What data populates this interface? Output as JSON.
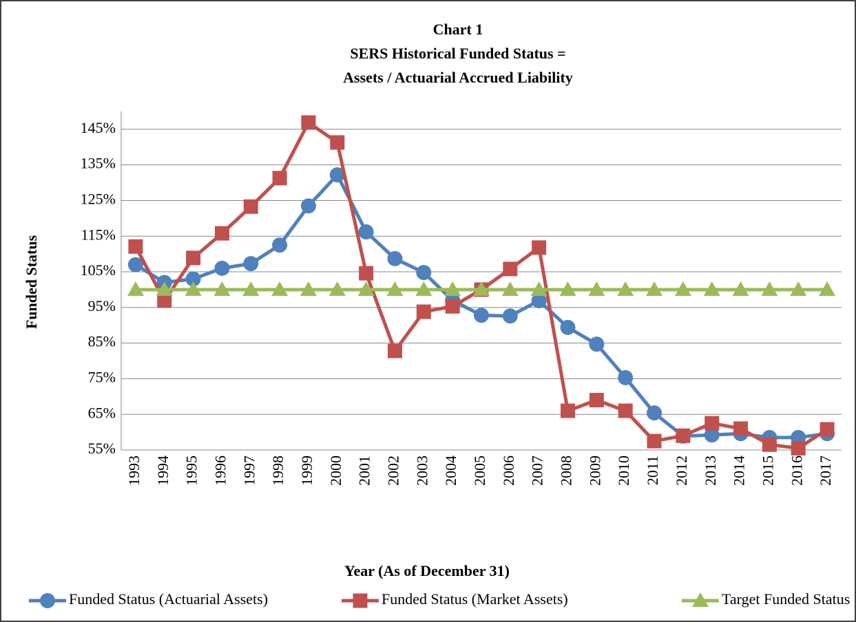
{
  "chart_data": {
    "type": "line",
    "title": "Chart 1",
    "subtitle": [
      "SERS Historical Funded Status =",
      "Assets / Actuarial Accrued Liability"
    ],
    "x_label": "Year (As of December 31)",
    "y_label": "Funded Status",
    "categories": [
      "1993",
      "1994",
      "1995",
      "1996",
      "1997",
      "1998",
      "1999",
      "2000",
      "2001",
      "2002",
      "2003",
      "2004",
      "2005",
      "2006",
      "2007",
      "2008",
      "2009",
      "2010",
      "2011",
      "2012",
      "2013",
      "2014",
      "2015",
      "2016",
      "2017"
    ],
    "series": [
      {
        "name": "Funded Status (Actuarial Assets)",
        "color": "#4f81bd",
        "marker": "circle",
        "values": [
          107,
          102,
          103,
          106,
          107.3,
          112.5,
          123.5,
          132.2,
          116.2,
          108.7,
          104.8,
          97,
          92.8,
          92.6,
          96.9,
          89.4,
          84.7,
          75.3,
          65.4,
          58.9,
          59.2,
          59.6,
          58.5,
          58.5,
          59.6
        ]
      },
      {
        "name": "Funded Status (Market Assets)",
        "color": "#c0504d",
        "marker": "square",
        "values": [
          112.1,
          96.9,
          108.9,
          115.8,
          123.3,
          131.3,
          146.9,
          141.3,
          104.6,
          82.8,
          93.8,
          95.3,
          100,
          105.8,
          111.8,
          66,
          69,
          66,
          57.5,
          59,
          62.5,
          61,
          56.5,
          55.5,
          60.8
        ]
      },
      {
        "name": "Target Funded Status",
        "color": "#9bbb59",
        "marker": "triangle",
        "values": [
          100,
          100,
          100,
          100,
          100,
          100,
          100,
          100,
          100,
          100,
          100,
          100,
          100,
          100,
          100,
          100,
          100,
          100,
          100,
          100,
          100,
          100,
          100,
          100,
          100
        ]
      }
    ],
    "ylim": [
      55,
      150
    ],
    "yticks": [
      {
        "value": 55,
        "label": "55%"
      },
      {
        "value": 65,
        "label": "65%"
      },
      {
        "value": 75,
        "label": "75%"
      },
      {
        "value": 85,
        "label": "85%"
      },
      {
        "value": 95,
        "label": "95%"
      },
      {
        "value": 105,
        "label": "105%"
      },
      {
        "value": 115,
        "label": "115%"
      },
      {
        "value": 125,
        "label": "125%"
      },
      {
        "value": 135,
        "label": "135%"
      },
      {
        "value": 145,
        "label": "145%"
      }
    ],
    "grid": true,
    "legend": "bottom"
  }
}
